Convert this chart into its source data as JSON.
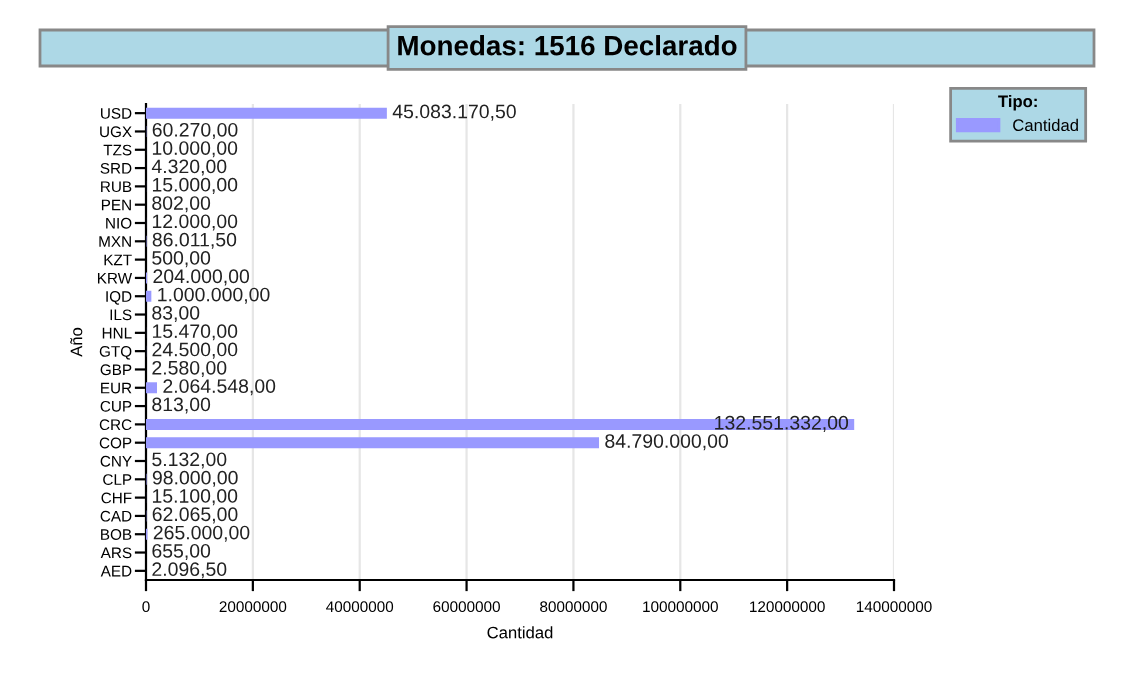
{
  "chart_data": {
    "type": "bar",
    "orientation": "horizontal",
    "title": "Monedas: 1516 Declarado",
    "xlabel": "Cantidad",
    "ylabel": "Año",
    "legend_title": "Tipo:",
    "legend": "top right",
    "grid": "x",
    "categories": [
      "USD",
      "UGX",
      "TZS",
      "SRD",
      "RUB",
      "PEN",
      "NIO",
      "MXN",
      "KZT",
      "KRW",
      "IQD",
      "ILS",
      "HNL",
      "GTQ",
      "GBP",
      "EUR",
      "CUP",
      "CRC",
      "COP",
      "CNY",
      "CLP",
      "CHF",
      "CAD",
      "BOB",
      "ARS",
      "AED"
    ],
    "series": [
      {
        "name": "Cantidad",
        "color": "#9999ff",
        "values": [
          45083170.5,
          60270.0,
          10000.0,
          4320.0,
          15000.0,
          802.0,
          12000.0,
          86011.5,
          500.0,
          204000.0,
          1000000.0,
          83.0,
          15470.0,
          24500.0,
          2580.0,
          2064548.0,
          813.0,
          132551332.0,
          84790000.0,
          5132.0,
          98000.0,
          15100.0,
          62065.0,
          265000.0,
          655.0,
          2096.5
        ],
        "value_labels": [
          "45.083.170,50",
          "60.270,00",
          "10.000,00",
          "4.320,00",
          "15.000,00",
          "802,00",
          "12.000,00",
          "86.011,50",
          "500,00",
          "204.000,00",
          "1.000.000,00",
          "83,00",
          "15.470,00",
          "24.500,00",
          "2.580,00",
          "2.064.548,00",
          "813,00",
          "132.551.332,00",
          "84.790.000,00",
          "5.132,00",
          "98.000,00",
          "15.100,00",
          "62.065,00",
          "265.000,00",
          "655,00",
          "2.096,50"
        ]
      }
    ],
    "xlim": [
      0,
      140000000
    ],
    "xticks": [
      0,
      20000000,
      40000000,
      60000000,
      80000000,
      100000000,
      120000000,
      140000000
    ]
  }
}
